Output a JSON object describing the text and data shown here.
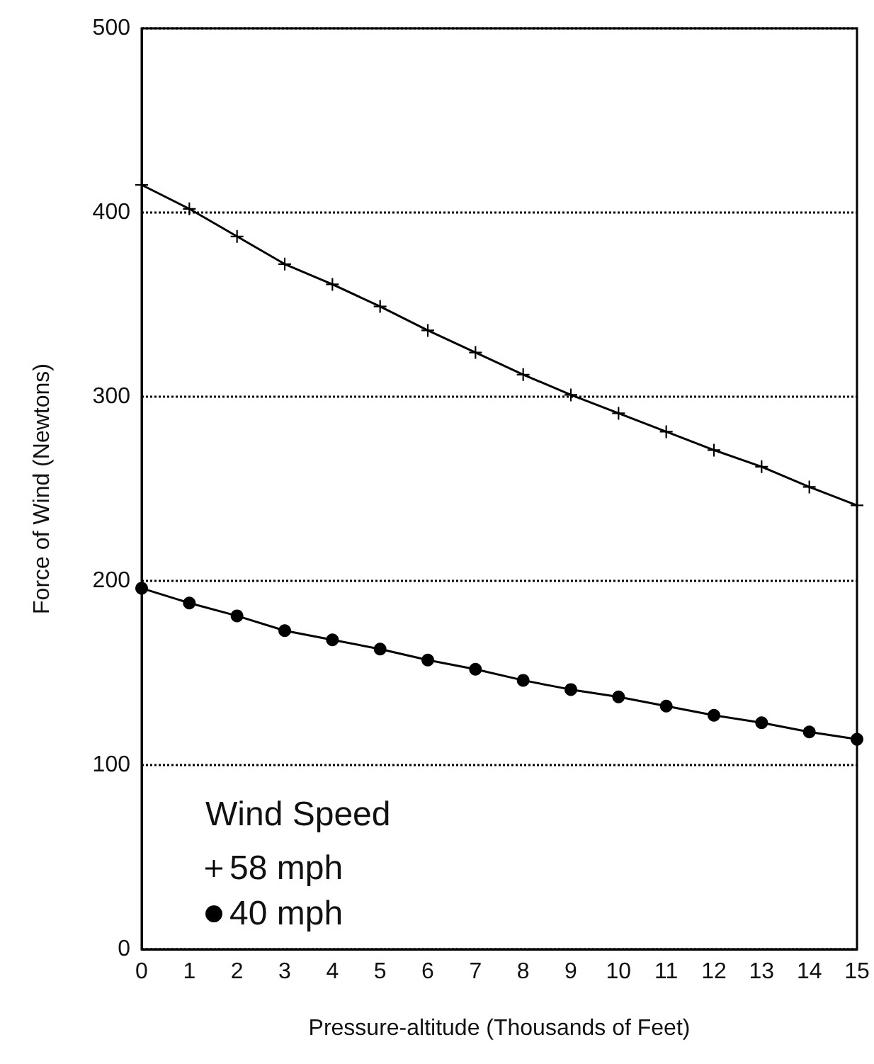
{
  "chart_data": {
    "type": "line",
    "xlabel": "Pressure-altitude (Thousands of Feet)",
    "ylabel": "Force of Wind (Newtons)",
    "legend_title": "Wind Speed",
    "x": [
      0,
      1,
      2,
      3,
      4,
      5,
      6,
      7,
      8,
      9,
      10,
      11,
      12,
      13,
      14,
      15
    ],
    "series": [
      {
        "name": "58 mph",
        "color": "#000000",
        "marker": "cross",
        "values": [
          415,
          402,
          387,
          372,
          361,
          349,
          336,
          324,
          312,
          301,
          291,
          281,
          271,
          262,
          251,
          241
        ]
      },
      {
        "name": "40 mph",
        "color": "#000000",
        "marker": "circle",
        "values": [
          196,
          188,
          181,
          173,
          168,
          163,
          157,
          152,
          146,
          141,
          137,
          132,
          127,
          123,
          118,
          114
        ]
      }
    ],
    "xlim": [
      0,
      15
    ],
    "xticks": [
      0,
      1,
      2,
      3,
      4,
      5,
      6,
      7,
      8,
      9,
      10,
      11,
      12,
      13,
      14,
      15
    ],
    "ylim": [
      0,
      500
    ],
    "yticks": [
      0,
      100,
      200,
      300,
      400,
      500
    ],
    "grid": "y",
    "legend": "bottom left",
    "line_style": "solid"
  }
}
